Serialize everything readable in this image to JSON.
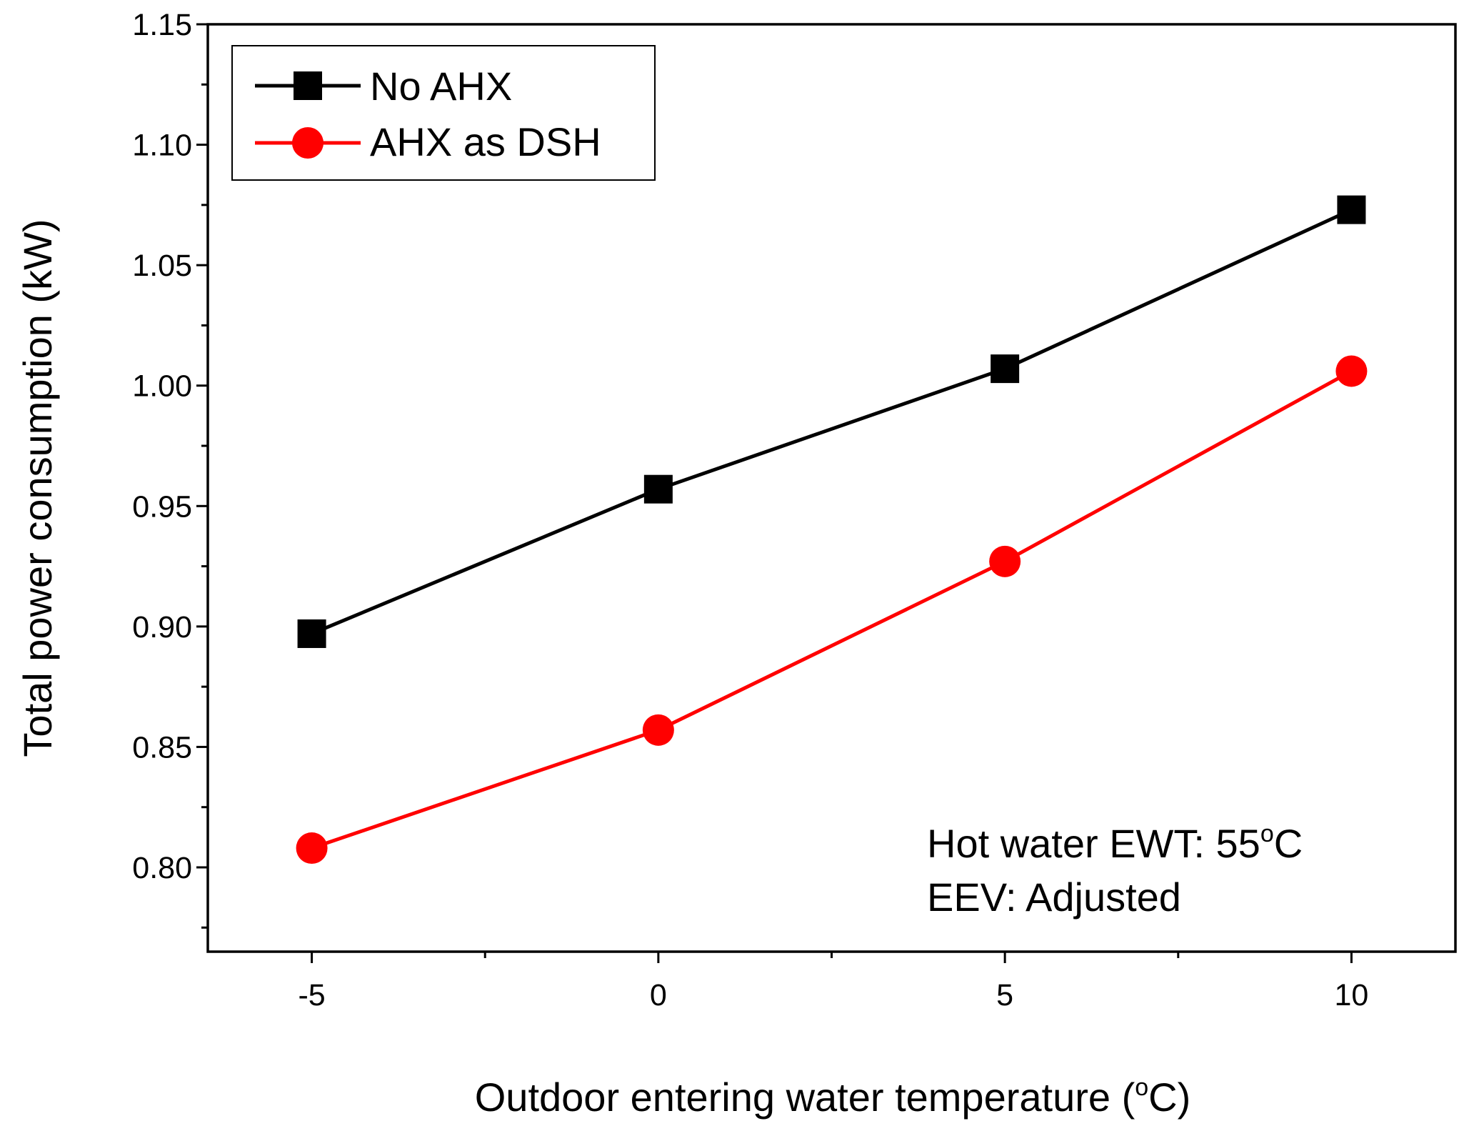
{
  "chart_data": {
    "type": "line",
    "title": "",
    "xlabel": "Outdoor entering water temperature (°C)",
    "xlabel_parts": {
      "before": "Outdoor entering water temperature (",
      "superscript": "o",
      "after": "C)"
    },
    "ylabel": "Total power consumption (kW)",
    "x": [
      -5,
      0,
      5,
      10
    ],
    "xlim": [
      -6.5,
      11.5
    ],
    "ylim": [
      0.765,
      1.15
    ],
    "xticks": [
      "-5",
      "0",
      "5",
      "10"
    ],
    "yticks": [
      "0.80",
      "0.85",
      "0.90",
      "0.95",
      "1.00",
      "1.05",
      "1.10",
      "1.15"
    ],
    "grid": false,
    "legend_position": "top-left",
    "series": [
      {
        "name": "No AHX",
        "marker": "square",
        "color": "#000000",
        "values": [
          0.897,
          0.957,
          1.007,
          1.073
        ]
      },
      {
        "name": "AHX as DSH",
        "marker": "circle",
        "color": "#ff0000",
        "values": [
          0.808,
          0.857,
          0.927,
          1.006
        ]
      }
    ],
    "annotations": [
      {
        "before": "Hot water EWT: 55",
        "superscript": "o",
        "after": "C"
      },
      {
        "before": "EEV: Adjusted",
        "superscript": "",
        "after": ""
      }
    ]
  }
}
